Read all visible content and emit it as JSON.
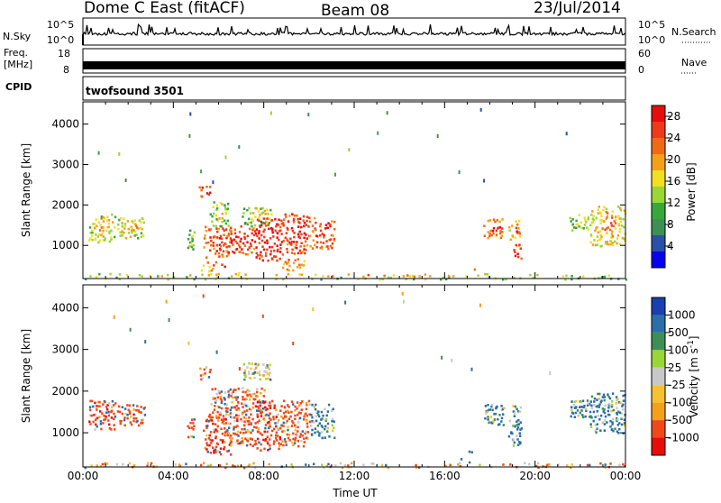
{
  "header": {
    "radar": "Dome C East (fitACF)",
    "beam": "Beam 08",
    "date": "23/Jul/2014"
  },
  "top_panels": {
    "nsky": {
      "label": "N.Sky",
      "ticks": [
        "10^5",
        "10^0"
      ],
      "right_label": "N.Search",
      "right_ticks": [
        "10^5",
        "10^0"
      ]
    },
    "freq": {
      "label_line1": "Freq.",
      "label_line2": "[MHz]",
      "ticks": [
        "18",
        "8"
      ],
      "right_label": "Nave",
      "right_ticks": [
        "60",
        "0"
      ]
    },
    "cpid": {
      "label": "CPID",
      "value": "twofsound 3501"
    }
  },
  "colors": {
    "power_scale": [
      "#0a00f0",
      "#2a4fa8",
      "#3d8f55",
      "#37a83a",
      "#9ad635",
      "#f0e020",
      "#f5a018",
      "#f06a15",
      "#ee3a18",
      "#e80c0c"
    ],
    "velocity_scale": [
      "#e80c0c",
      "#f04818",
      "#f5a018",
      "#f7c030",
      "#c8c8c8",
      "#9ad635",
      "#3d8f55",
      "#2a6fa8",
      "#1a3fb0"
    ]
  },
  "chart_data": [
    {
      "type": "heatmap",
      "name": "power",
      "ylabel": "Slant Range [km]",
      "xlabel": "",
      "xlim": [
        "00:00",
        "00:00"
      ],
      "ylim": [
        180,
        4550
      ],
      "x_ticks": [
        "00:00",
        "04:00",
        "08:00",
        "12:00",
        "16:00",
        "20:00",
        "00:00"
      ],
      "y_ticks": [
        "1000",
        "2000",
        "3000",
        "4000"
      ],
      "colorbar": {
        "label": "Power [dB]",
        "ticks": [
          "4",
          "8",
          "12",
          "16",
          "20",
          "24",
          "28"
        ],
        "range": [
          0,
          30
        ]
      },
      "regions": [
        {
          "t": [
            0.2,
            1.4
          ],
          "r": [
            1100,
            1800
          ],
          "v": 14,
          "core": 21
        },
        {
          "t": [
            1.5,
            2.7
          ],
          "r": [
            1200,
            1700
          ],
          "v": 15,
          "core": 21
        },
        {
          "t": [
            4.6,
            4.9
          ],
          "r": [
            900,
            1400
          ],
          "v": 10,
          "core": 14
        },
        {
          "t": [
            5.1,
            5.6
          ],
          "r": [
            2200,
            2500
          ],
          "v": 24,
          "core": 28
        },
        {
          "t": [
            5.3,
            6.5
          ],
          "r": [
            700,
            1500
          ],
          "v": 22,
          "core": 28
        },
        {
          "t": [
            5.6,
            6.4
          ],
          "r": [
            1500,
            2100
          ],
          "v": 12,
          "core": 18
        },
        {
          "t": [
            6.4,
            7.6
          ],
          "r": [
            800,
            1500
          ],
          "v": 24,
          "core": 29
        },
        {
          "t": [
            7.0,
            8.3
          ],
          "r": [
            1500,
            2000
          ],
          "v": 12,
          "core": 20
        },
        {
          "t": [
            7.6,
            8.8
          ],
          "r": [
            650,
            1700
          ],
          "v": 26,
          "core": 30
        },
        {
          "t": [
            8.8,
            10.0
          ],
          "r": [
            800,
            1800
          ],
          "v": 24,
          "core": 29
        },
        {
          "t": [
            10.0,
            11.1
          ],
          "r": [
            900,
            1700
          ],
          "v": 22,
          "core": 28
        },
        {
          "t": [
            5.2,
            7.0
          ],
          "r": [
            250,
            650
          ],
          "v": 16,
          "core": 26
        },
        {
          "t": [
            8.8,
            9.8
          ],
          "r": [
            400,
            700
          ],
          "v": 18,
          "core": 26
        },
        {
          "t": [
            16.6,
            17.3
          ],
          "r": [
            250,
            550
          ],
          "v": 22,
          "core": 29
        },
        {
          "t": [
            17.7,
            18.6
          ],
          "r": [
            1200,
            1700
          ],
          "v": 20,
          "core": 28
        },
        {
          "t": [
            18.8,
            19.3
          ],
          "r": [
            1000,
            1700
          ],
          "v": 16,
          "core": 24
        },
        {
          "t": [
            19.0,
            19.4
          ],
          "r": [
            700,
            1100
          ],
          "v": 25,
          "core": 29
        },
        {
          "t": [
            21.5,
            22.4
          ],
          "r": [
            1400,
            1800
          ],
          "v": 12,
          "core": 18
        },
        {
          "t": [
            22.4,
            23.95
          ],
          "r": [
            1000,
            2000
          ],
          "v": 16,
          "core": 24
        },
        {
          "t": [
            0.0,
            24.0
          ],
          "r": [
            180,
            320
          ],
          "v": 12,
          "core": 22
        }
      ]
    },
    {
      "type": "heatmap",
      "name": "velocity",
      "ylabel": "Slant Range [km]",
      "xlabel": "Time UT",
      "xlim": [
        "00:00",
        "00:00"
      ],
      "ylim": [
        180,
        4550
      ],
      "x_ticks": [
        "00:00",
        "04:00",
        "08:00",
        "12:00",
        "16:00",
        "20:00",
        "00:00"
      ],
      "y_ticks": [
        "1000",
        "2000",
        "3000",
        "4000"
      ],
      "colorbar": {
        "label": "Velocity [m s^-1]",
        "ticks": [
          "1000",
          "500",
          "100",
          "25",
          "-25",
          "-100",
          "-500",
          "-1000"
        ]
      },
      "regions": [
        {
          "t": [
            0.2,
            1.4
          ],
          "r": [
            1100,
            1800
          ],
          "v": -300
        },
        {
          "t": [
            1.5,
            2.7
          ],
          "r": [
            1200,
            1700
          ],
          "v": -250
        },
        {
          "t": [
            4.6,
            4.9
          ],
          "r": [
            900,
            1400
          ],
          "v": -100
        },
        {
          "t": [
            5.1,
            5.6
          ],
          "r": [
            2300,
            2600
          ],
          "v": -200
        },
        {
          "t": [
            5.3,
            6.5
          ],
          "r": [
            500,
            1500
          ],
          "v": -300
        },
        {
          "t": [
            5.6,
            8.0
          ],
          "r": [
            1500,
            2100
          ],
          "v": -150
        },
        {
          "t": [
            6.4,
            7.6
          ],
          "r": [
            700,
            1500
          ],
          "v": -250
        },
        {
          "t": [
            7.0,
            8.3
          ],
          "r": [
            2300,
            2700
          ],
          "v": 0
        },
        {
          "t": [
            7.6,
            8.8
          ],
          "r": [
            600,
            1800
          ],
          "v": -300
        },
        {
          "t": [
            8.8,
            10.0
          ],
          "r": [
            700,
            1800
          ],
          "v": -250
        },
        {
          "t": [
            10.0,
            11.1
          ],
          "r": [
            900,
            1700
          ],
          "v": 80
        },
        {
          "t": [
            16.6,
            17.3
          ],
          "r": [
            250,
            600
          ],
          "v": 150
        },
        {
          "t": [
            17.7,
            18.6
          ],
          "r": [
            1200,
            1700
          ],
          "v": 120
        },
        {
          "t": [
            18.8,
            19.4
          ],
          "r": [
            700,
            1700
          ],
          "v": 150
        },
        {
          "t": [
            21.5,
            22.4
          ],
          "r": [
            1400,
            1800
          ],
          "v": 100
        },
        {
          "t": [
            22.4,
            23.95
          ],
          "r": [
            1000,
            2000
          ],
          "v": 120
        },
        {
          "t": [
            0.0,
            24.0
          ],
          "r": [
            180,
            300
          ],
          "v": -80
        }
      ]
    }
  ]
}
